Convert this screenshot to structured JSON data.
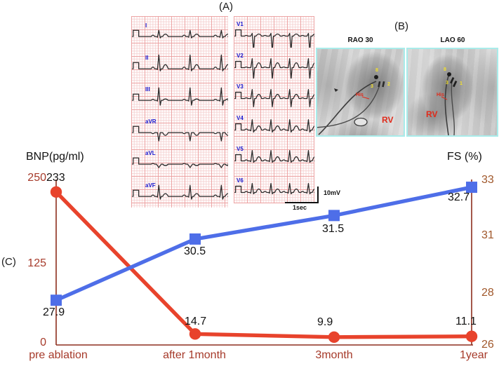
{
  "panels": {
    "a": "(A)",
    "b": "(B)",
    "c": "(C)"
  },
  "ecg": {
    "left_leads": [
      "I",
      "II",
      "III",
      "aVR",
      "aVL",
      "aVF"
    ],
    "right_leads": [
      "V1",
      "V2",
      "V3",
      "V4",
      "V5",
      "V6"
    ],
    "voltage_scale": "10mV",
    "time_scale": "1sec"
  },
  "fluoroscopy": {
    "views": [
      {
        "title": "RAO 30",
        "his_label": "His",
        "rv_label": "RV",
        "markers": [
          "8",
          "3",
          "2"
        ]
      },
      {
        "title": "LAO 60",
        "his_label": "His",
        "rv_label": "RV",
        "markers": [
          "8",
          "3",
          "1"
        ]
      }
    ]
  },
  "chart_data": {
    "type": "line",
    "categories": [
      "pre ablation",
      "after 1month",
      "3month",
      "1year"
    ],
    "series": [
      {
        "name": "BNP",
        "axis": "left",
        "marker": "circle",
        "color": "#e8432c",
        "values": [
          233,
          14.7,
          9.9,
          11.1
        ],
        "point_labels": [
          "233",
          "14.7",
          "9.9",
          "11.1"
        ]
      },
      {
        "name": "FS",
        "axis": "right",
        "marker": "square",
        "color": "#4e6ee8",
        "values": [
          27.9,
          30.5,
          31.5,
          32.7
        ],
        "point_labels": [
          "27.9",
          "30.5",
          "31.5",
          "32.7"
        ]
      }
    ],
    "left_axis": {
      "title": "BNP(pg/ml)",
      "ticks": [
        "250",
        "125",
        "0"
      ],
      "range": [
        0,
        250
      ]
    },
    "right_axis": {
      "title": "FS (%)",
      "ticks": [
        "33",
        "31",
        "28",
        "26"
      ],
      "range": [
        26,
        33
      ]
    },
    "axis_color": "#8e2f1e",
    "grid": false,
    "legend": "none"
  }
}
